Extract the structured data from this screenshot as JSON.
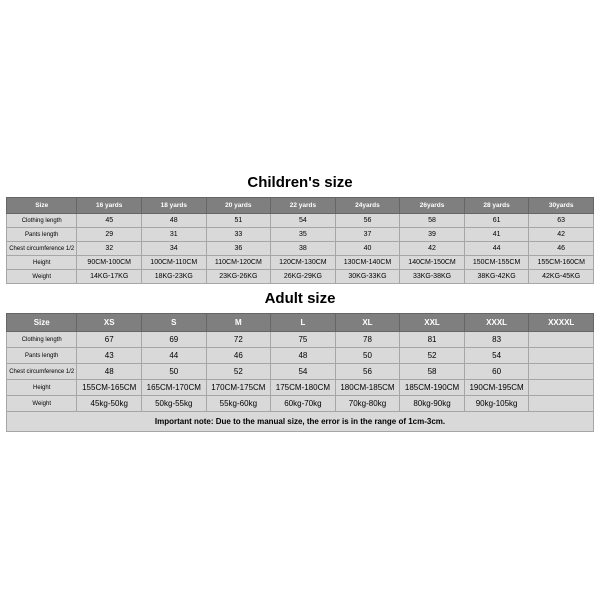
{
  "children": {
    "title": "Children's size",
    "headers": [
      "Size",
      "16 yards",
      "18 yards",
      "20 yards",
      "22 yards",
      "24yards",
      "26yards",
      "28 yards",
      "30yards"
    ],
    "rows": [
      {
        "label": "Clothing length",
        "values": [
          "45",
          "48",
          "51",
          "54",
          "56",
          "58",
          "61",
          "63"
        ]
      },
      {
        "label": "Pants length",
        "values": [
          "29",
          "31",
          "33",
          "35",
          "37",
          "39",
          "41",
          "42"
        ]
      },
      {
        "label": "Chest circumference 1/2",
        "values": [
          "32",
          "34",
          "36",
          "38",
          "40",
          "42",
          "44",
          "46"
        ]
      },
      {
        "label": "Height",
        "values": [
          "90CM-100CM",
          "100CM-110CM",
          "110CM-120CM",
          "120CM-130CM",
          "130CM-140CM",
          "140CM-150CM",
          "150CM-155CM",
          "155CM-160CM"
        ]
      },
      {
        "label": "Weight",
        "values": [
          "14KG-17KG",
          "18KG-23KG",
          "23KG-26KG",
          "26KG-29KG",
          "30KG-33KG",
          "33KG-38KG",
          "38KG-42KG",
          "42KG-45KG"
        ]
      }
    ]
  },
  "adult": {
    "title": "Adult size",
    "headers": [
      "Size",
      "XS",
      "S",
      "M",
      "L",
      "XL",
      "XXL",
      "XXXL",
      "XXXXL"
    ],
    "rows": [
      {
        "label": "Clothing length",
        "values": [
          "67",
          "69",
          "72",
          "75",
          "78",
          "81",
          "83",
          ""
        ]
      },
      {
        "label": "Pants length",
        "values": [
          "43",
          "44",
          "46",
          "48",
          "50",
          "52",
          "54",
          ""
        ]
      },
      {
        "label": "Chest circumference 1/2",
        "values": [
          "48",
          "50",
          "52",
          "54",
          "56",
          "58",
          "60",
          ""
        ]
      },
      {
        "label": "Height",
        "values": [
          "155CM-165CM",
          "165CM-170CM",
          "170CM-175CM",
          "175CM-180CM",
          "180CM-185CM",
          "185CM-190CM",
          "190CM-195CM",
          ""
        ]
      },
      {
        "label": "Weight",
        "values": [
          "45kg-50kg",
          "50kg-55kg",
          "55kg-60kg",
          "60kg-70kg",
          "70kg-80kg",
          "80kg-90kg",
          "90kg-105kg",
          ""
        ]
      }
    ],
    "note": "Important note: Due to the manual size, the error is in the range of 1cm-3cm."
  },
  "colors": {
    "header_bg": "#7f7f7f",
    "header_text": "#ffffff",
    "cell_bg": "#d9d9d9",
    "cell_text": "#000000",
    "border": "#a6a6a6",
    "page_bg": "#ffffff"
  }
}
